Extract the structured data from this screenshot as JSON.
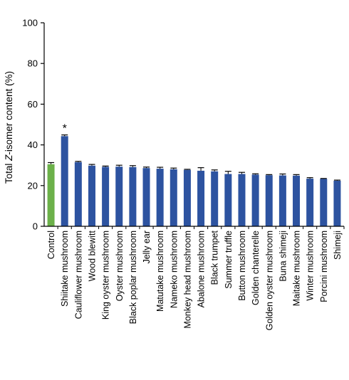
{
  "chart_data": {
    "type": "bar",
    "title": "",
    "xlabel": "",
    "ylabel_prefix": "Total ",
    "ylabel_italic": "Z",
    "ylabel_suffix": "-isomer content (%)",
    "ylim": [
      0,
      100
    ],
    "yticks": [
      0,
      20,
      40,
      60,
      80,
      100
    ],
    "grid": false,
    "legend": "none",
    "colors": {
      "control": "#6cb14a",
      "sample": "#2d53a0",
      "axis": "#000000"
    },
    "categories": [
      "Control",
      "Shiitake mushroom",
      "Cauliflower mushroom",
      "Wood blewitt",
      "King oyster mushroom",
      "Oyster mushroom",
      "Black poplar mushroom",
      "Jelly ear",
      "Matutake mushroom",
      "Nameko mushroom",
      "Monkey head mushroom",
      "Abalone mushroom",
      "Black trumpet",
      "Summer truffle",
      "Button mushroom",
      "Golden chanterelle",
      "Golden oyster mushroom",
      "Buna shimeji",
      "Maitake mushroom",
      "Winter mushroom",
      "Porcini mushroom",
      "Shimeji"
    ],
    "values": [
      30.5,
      44.3,
      31.5,
      29.8,
      29.2,
      29.3,
      29.1,
      28.6,
      28.3,
      28.0,
      27.7,
      27.3,
      27.0,
      25.7,
      25.7,
      25.4,
      25.1,
      25.0,
      24.9,
      23.4,
      23.3,
      22.4
    ],
    "errors": [
      0.8,
      0.6,
      0.4,
      0.6,
      0.4,
      0.7,
      0.7,
      0.5,
      0.7,
      0.6,
      0.3,
      1.5,
      0.7,
      1.3,
      0.8,
      0.4,
      0.3,
      0.7,
      0.5,
      0.5,
      0.2,
      0.3
    ],
    "annotations": [
      {
        "category": "Shiitake mushroom",
        "text": "*"
      }
    ]
  }
}
